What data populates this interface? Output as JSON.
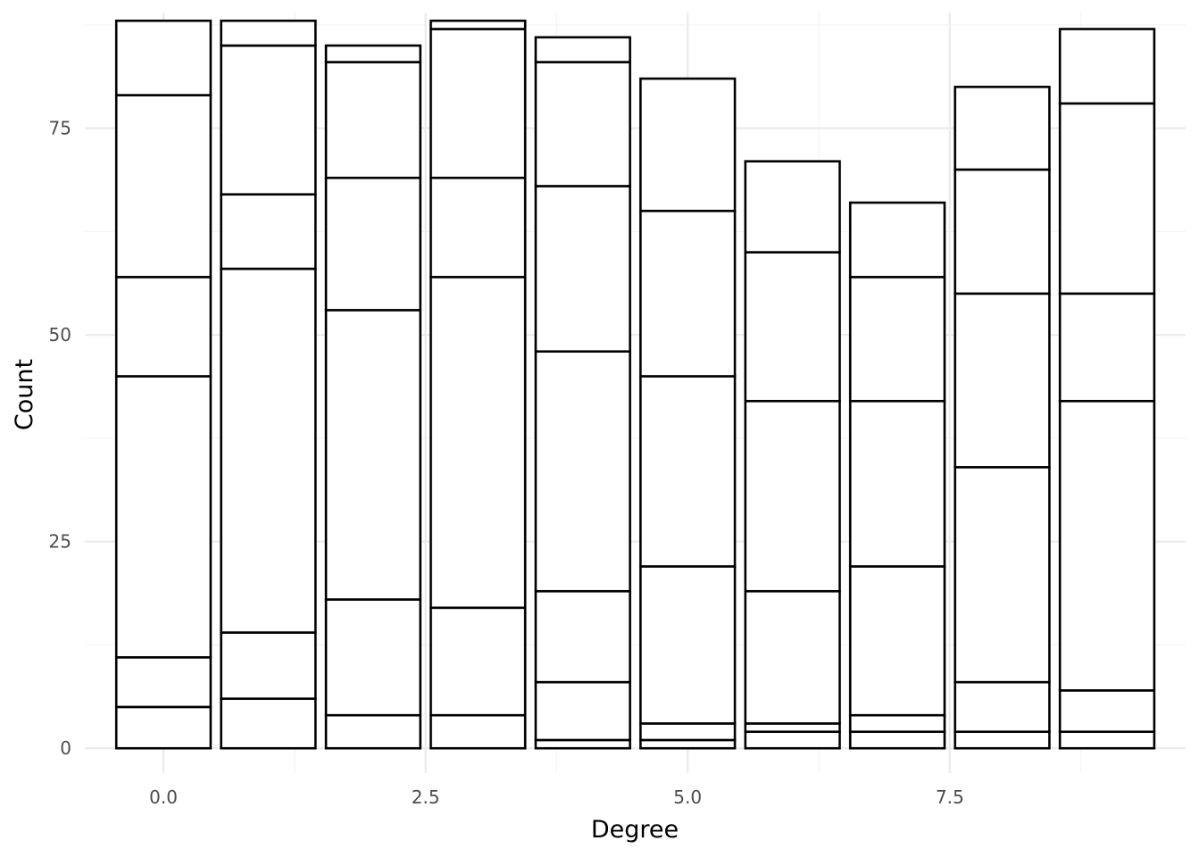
{
  "chart_data": {
    "type": "bar",
    "stacked": true,
    "xlabel": "Degree",
    "ylabel": "Count",
    "x": [
      0,
      1,
      2,
      3,
      4,
      5,
      6,
      7,
      8,
      9
    ],
    "xlim": [
      -0.75,
      9.75
    ],
    "ylim": [
      -3,
      89
    ],
    "x_ticks": [
      "0.0",
      "2.5",
      "5.0",
      "7.5"
    ],
    "x_tick_values": [
      0,
      2.5,
      5,
      7.5
    ],
    "y_ticks": [
      "0",
      "25",
      "50",
      "75"
    ],
    "y_tick_values": [
      0,
      25,
      50,
      75
    ],
    "grid": true,
    "fill_color": "#ffffff",
    "outline_color": "#000000",
    "stack_boundaries": [
      [
        5,
        11,
        45,
        57,
        79,
        88
      ],
      [
        6,
        14,
        58,
        67,
        85,
        88
      ],
      [
        4,
        18,
        53,
        69,
        83,
        85
      ],
      [
        4,
        17,
        57,
        69,
        87,
        88
      ],
      [
        1,
        8,
        19,
        48,
        68,
        83,
        86
      ],
      [
        1,
        3,
        22,
        45,
        65,
        81
      ],
      [
        2,
        3,
        19,
        42,
        60,
        71
      ],
      [
        2,
        4,
        22,
        42,
        57,
        66
      ],
      [
        2,
        8,
        34,
        55,
        70,
        80
      ],
      [
        2,
        7,
        42,
        55,
        78,
        87
      ]
    ],
    "totals": [
      88,
      88,
      85,
      88,
      86,
      81,
      71,
      66,
      80,
      87
    ]
  }
}
